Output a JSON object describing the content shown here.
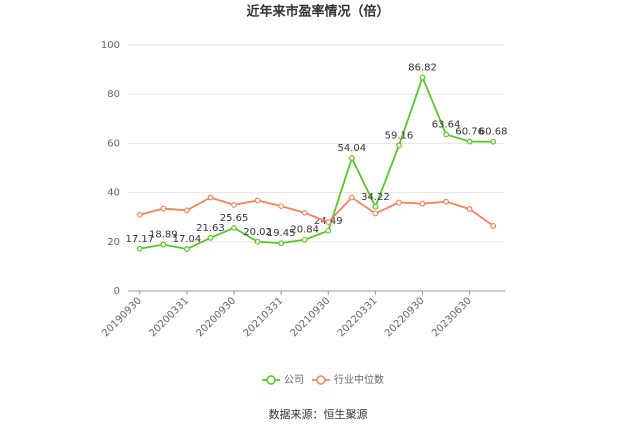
{
  "chart_data": {
    "type": "line",
    "title": "近年来市盈率情况（倍）",
    "categories": [
      "20190930",
      null,
      "20200331",
      null,
      "20200930",
      null,
      "20210331",
      null,
      "20210930",
      null,
      "20220331",
      null,
      "20220930",
      null,
      "20230630",
      null
    ],
    "series": [
      {
        "name": "公司",
        "color": "#5bc42b",
        "values": [
          17.17,
          18.89,
          17.04,
          21.63,
          25.65,
          20.02,
          19.45,
          20.84,
          24.49,
          54.04,
          34.22,
          59.16,
          86.82,
          63.64,
          60.76,
          60.68
        ],
        "show_labels": true
      },
      {
        "name": "行业中位数",
        "color": "#f4845f",
        "values": [
          31,
          33.5,
          32.8,
          38,
          35,
          36.8,
          34.5,
          31.8,
          28,
          38,
          31.5,
          36,
          35.5,
          36.3,
          33.3,
          26.5
        ],
        "show_labels": false
      }
    ],
    "ylim": [
      0,
      100
    ],
    "yticks": [
      0,
      20,
      40,
      60,
      80,
      100
    ],
    "grid": true,
    "source": "数据来源：恒生聚源"
  }
}
